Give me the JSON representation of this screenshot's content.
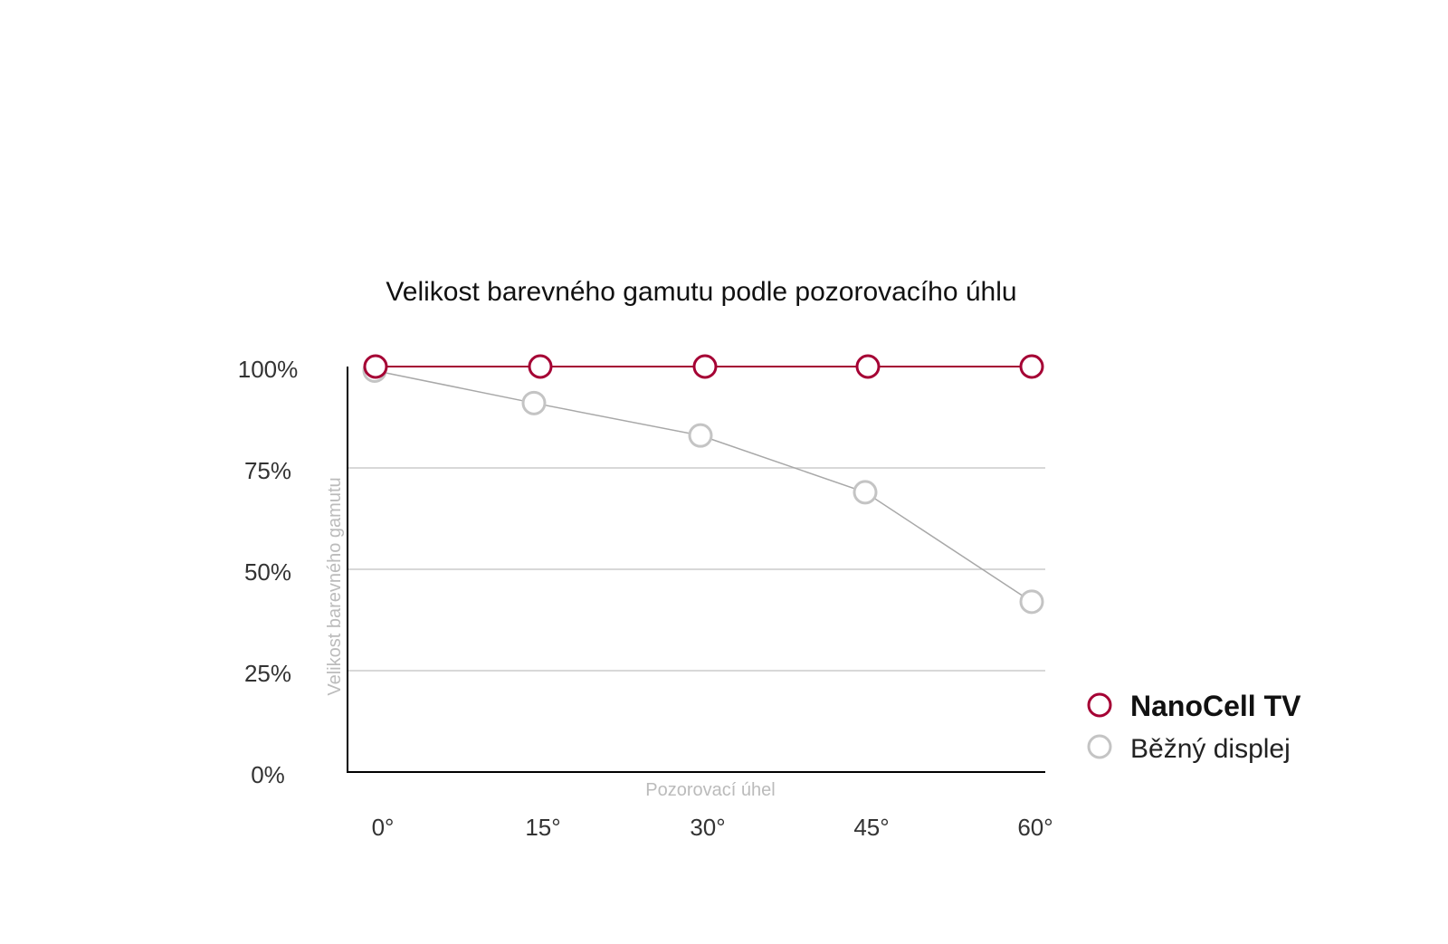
{
  "chart_data": {
    "type": "line",
    "title": "Velikost barevného gamutu podle pozorovacího úhlu",
    "xlabel": "Pozorovací úhel",
    "ylabel": "Velikost barevného gamutu",
    "categories": [
      "0°",
      "15°",
      "30°",
      "45°",
      "60°"
    ],
    "y_ticks": [
      "0%",
      "25%",
      "50%",
      "75%",
      "100%"
    ],
    "ylim": [
      0,
      100
    ],
    "grid": true,
    "legend_position": "right",
    "series": [
      {
        "name": "NanoCell TV",
        "values": [
          100,
          100,
          100,
          100,
          100
        ],
        "color": "#a50034",
        "line_color": "#a50034"
      },
      {
        "name": "Běžný displej",
        "values": [
          99,
          91,
          83,
          69,
          42
        ],
        "color": "#c4c4c4",
        "line_color": "#a8a8a8"
      }
    ],
    "axis_color": "#000000",
    "grid_color": "#cccccc"
  }
}
